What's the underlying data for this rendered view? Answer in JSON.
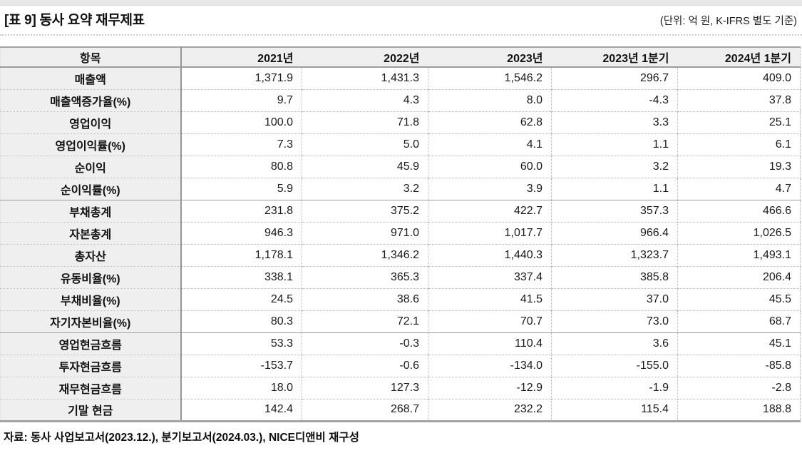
{
  "page": {
    "caption": "[표 9] 동사 요약 재무제표",
    "unit_note": "(단위: 억 원, K-IFRS 별도 기준)",
    "source_note": "자료: 동사 사업보고서(2023.12.), 분기보고서(2024.03.), NICE디앤비 재구성"
  },
  "table": {
    "columns": [
      "항목",
      "2021년",
      "2022년",
      "2023년",
      "2023년 1분기",
      "2024년 1분기"
    ],
    "rows": [
      {
        "label": "매출액",
        "values": [
          "1,371.9",
          "1,431.3",
          "1,546.2",
          "296.7",
          "409.0"
        ]
      },
      {
        "label": "매출액증가율(%)",
        "values": [
          "9.7",
          "4.3",
          "8.0",
          "-4.3",
          "37.8"
        ]
      },
      {
        "label": "영업이익",
        "values": [
          "100.0",
          "71.8",
          "62.8",
          "3.3",
          "25.1"
        ]
      },
      {
        "label": "영업이익률(%)",
        "values": [
          "7.3",
          "5.0",
          "4.1",
          "1.1",
          "6.1"
        ]
      },
      {
        "label": "순이익",
        "values": [
          "80.8",
          "45.9",
          "60.0",
          "3.2",
          "19.3"
        ]
      },
      {
        "label": "순이익률(%)",
        "values": [
          "5.9",
          "3.2",
          "3.9",
          "1.1",
          "4.7"
        ],
        "section_end": true
      },
      {
        "label": "부채총계",
        "values": [
          "231.8",
          "375.2",
          "422.7",
          "357.3",
          "466.6"
        ]
      },
      {
        "label": "자본총계",
        "values": [
          "946.3",
          "971.0",
          "1,017.7",
          "966.4",
          "1,026.5"
        ]
      },
      {
        "label": "총자산",
        "values": [
          "1,178.1",
          "1,346.2",
          "1,440.3",
          "1,323.7",
          "1,493.1"
        ]
      },
      {
        "label": "유동비율(%)",
        "values": [
          "338.1",
          "365.3",
          "337.4",
          "385.8",
          "206.4"
        ]
      },
      {
        "label": "부채비율(%)",
        "values": [
          "24.5",
          "38.6",
          "41.5",
          "37.0",
          "45.5"
        ]
      },
      {
        "label": "자기자본비율(%)",
        "values": [
          "80.3",
          "72.1",
          "70.7",
          "73.0",
          "68.7"
        ],
        "section_end": true
      },
      {
        "label": "영업현금흐름",
        "values": [
          "53.3",
          "-0.3",
          "110.4",
          "3.6",
          "45.1"
        ]
      },
      {
        "label": "투자현금흐름",
        "values": [
          "-153.7",
          "-0.6",
          "-134.0",
          "-155.0",
          "-85.8"
        ]
      },
      {
        "label": "재무현금흐름",
        "values": [
          "18.0",
          "127.3",
          "-12.9",
          "-1.9",
          "-2.8"
        ]
      },
      {
        "label": "기말 현금",
        "values": [
          "142.4",
          "268.7",
          "232.2",
          "115.4",
          "188.8"
        ]
      }
    ]
  },
  "colors": {
    "header_bg": "#efefef",
    "frame_border": "#a3a3a3",
    "grid_dotted": "#b5b5b5",
    "text": "#111111"
  }
}
